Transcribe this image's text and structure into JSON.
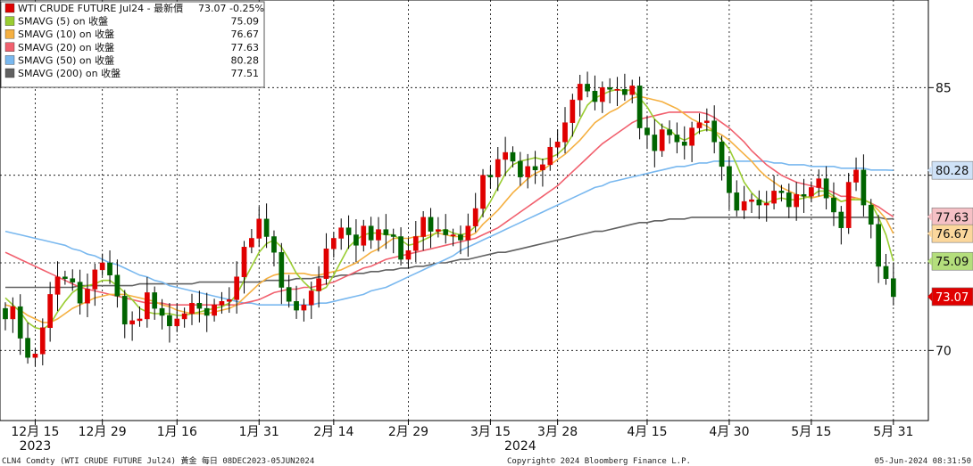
{
  "chart_data": {
    "type": "candlestick",
    "grid": true,
    "legend_position": "top-left",
    "yaxis": {
      "range": [
        66,
        90
      ],
      "ticks": [
        {
          "value": 85,
          "label": "85"
        },
        {
          "value": 80,
          "label": "80"
        },
        {
          "value": 75,
          "label": "75"
        },
        {
          "value": 70,
          "label": "70"
        }
      ]
    },
    "xaxis": {
      "ticks": [
        {
          "index": 4,
          "label": "12月 15"
        },
        {
          "index": 13,
          "label": "12月 29"
        },
        {
          "index": 23,
          "label": "1月 16"
        },
        {
          "index": 34,
          "label": "1月 31"
        },
        {
          "index": 44,
          "label": "2月 14"
        },
        {
          "index": 54,
          "label": "2月 29"
        },
        {
          "index": 65,
          "label": "3月 15"
        },
        {
          "index": 74,
          "label": "3月 28"
        },
        {
          "index": 86,
          "label": "4月 15"
        },
        {
          "index": 97,
          "label": "4月 30"
        },
        {
          "index": 108,
          "label": "5月 15"
        },
        {
          "index": 119,
          "label": "5月 31"
        }
      ],
      "years": [
        {
          "index": 4,
          "label": "2023"
        },
        {
          "index": 69,
          "label": "2024"
        }
      ]
    },
    "legend": [
      {
        "name": "WTI CRUDE FUTURE Jul24 - 最新價",
        "value": "73.07  -0.25%",
        "color": "#e00000"
      },
      {
        "name": "SMAVG (5)  on 收盤",
        "value": "75.09",
        "color": "#9acd32"
      },
      {
        "name": "SMAVG (10)  on 收盤",
        "value": "76.67",
        "color": "#f5b041"
      },
      {
        "name": "SMAVG (20)  on 收盤",
        "value": "77.63",
        "color": "#f1606e"
      },
      {
        "name": "SMAVG (50)  on 收盤",
        "value": "80.28",
        "color": "#79b8ef"
      },
      {
        "name": "SMAVG (200)  on 收盤",
        "value": "77.51",
        "color": "#606060"
      }
    ],
    "badges": [
      {
        "value": 80.28,
        "label": "80.28",
        "bg": "#cfe2f7",
        "fg": "#111111"
      },
      {
        "value": 77.63,
        "label": "77.63",
        "bg": "#f5c0c5",
        "fg": "#111111"
      },
      {
        "value": 76.67,
        "label": "76.67",
        "bg": "#fbd79c",
        "fg": "#111111"
      },
      {
        "value": 75.09,
        "label": "75.09",
        "bg": "#b4de7c",
        "fg": "#111111"
      },
      {
        "value": 73.07,
        "label": "73.07",
        "bg": "#e00000",
        "fg": "#ffffff"
      }
    ],
    "candles_close": [
      71.8,
      72.5,
      70.7,
      69.6,
      69.8,
      71.3,
      73.2,
      74.2,
      74.1,
      73.9,
      72.7,
      73.5,
      74.6,
      75.0,
      74.3,
      73.1,
      71.5,
      71.7,
      71.8,
      73.3,
      72.4,
      72.0,
      71.4,
      71.8,
      72.1,
      72.7,
      72.4,
      72.0,
      72.6,
      72.8,
      72.9,
      74.2,
      75.9,
      76.4,
      77.5,
      76.5,
      75.6,
      73.6,
      72.8,
      72.3,
      72.6,
      73.4,
      74.1,
      75.8,
      76.4,
      77.0,
      76.6,
      76.0,
      77.1,
      76.3,
      76.9,
      76.6,
      76.5,
      75.2,
      75.7,
      76.5,
      77.6,
      76.8,
      76.9,
      76.6,
      76.6,
      76.3,
      77.1,
      78.1,
      80.0,
      79.9,
      80.9,
      81.3,
      80.8,
      79.9,
      80.5,
      80.3,
      80.6,
      81.6,
      81.9,
      83.0,
      84.3,
      85.2,
      84.8,
      84.2,
      85.0,
      84.9,
      84.9,
      84.6,
      85.1,
      82.7,
      82.3,
      81.4,
      82.6,
      82.3,
      81.9,
      81.7,
      82.7,
      83.0,
      83.1,
      81.9,
      80.5,
      79.0,
      78.0,
      78.5,
      78.6,
      78.3,
      78.4,
      79.1,
      79.0,
      78.2,
      78.9,
      78.8,
      79.3,
      79.8,
      78.7,
      77.9,
      77.0,
      79.6,
      80.3,
      78.3,
      77.2,
      74.8,
      74.1,
      73.07
    ],
    "candles_open": [
      72.4,
      71.8,
      72.5,
      70.7,
      69.6,
      69.8,
      71.3,
      73.2,
      74.2,
      74.1,
      73.9,
      72.7,
      73.5,
      74.6,
      75.0,
      74.3,
      73.1,
      71.5,
      71.7,
      71.8,
      73.3,
      72.4,
      72.0,
      71.4,
      71.8,
      72.1,
      72.7,
      72.4,
      72.0,
      72.6,
      72.8,
      72.9,
      74.2,
      75.9,
      76.4,
      77.5,
      76.5,
      75.6,
      73.6,
      72.8,
      72.3,
      72.6,
      73.4,
      74.1,
      75.8,
      76.4,
      77.0,
      76.6,
      76.0,
      77.1,
      76.3,
      76.9,
      76.6,
      76.5,
      75.2,
      75.7,
      76.5,
      77.6,
      76.8,
      76.9,
      76.6,
      76.6,
      76.3,
      77.1,
      78.1,
      80.0,
      79.9,
      80.9,
      81.3,
      80.8,
      79.9,
      80.5,
      80.3,
      80.6,
      81.6,
      81.9,
      83.0,
      84.3,
      85.2,
      84.8,
      84.2,
      85.0,
      84.9,
      84.9,
      84.6,
      85.1,
      82.7,
      82.3,
      81.4,
      82.6,
      82.3,
      81.9,
      81.7,
      82.7,
      83.0,
      83.1,
      81.9,
      80.5,
      79.0,
      78.0,
      78.5,
      78.6,
      78.3,
      78.4,
      79.1,
      79.0,
      78.2,
      78.9,
      78.8,
      79.3,
      79.8,
      78.7,
      77.9,
      77.0,
      79.6,
      80.3,
      78.3,
      77.2,
      74.8,
      74.1
    ],
    "sma5": [
      73.0,
      72.6,
      72.2,
      71.6,
      71.3,
      71.2,
      71.5,
      72.2,
      72.8,
      73.3,
      73.6,
      73.7,
      73.8,
      74.0,
      74.0,
      73.7,
      73.3,
      72.9,
      72.4,
      72.2,
      72.1,
      72.1,
      72.1,
      72.0,
      72.0,
      72.1,
      72.2,
      72.3,
      72.4,
      72.5,
      72.7,
      73.2,
      74.0,
      74.8,
      75.6,
      76.1,
      76.3,
      75.9,
      75.2,
      74.4,
      73.9,
      73.5,
      73.4,
      73.6,
      74.3,
      75.1,
      75.9,
      76.3,
      76.6,
      76.7,
      76.7,
      76.6,
      76.6,
      76.3,
      76.0,
      76.1,
      76.3,
      76.5,
      76.8,
      76.9,
      76.7,
      76.6,
      76.7,
      77.1,
      77.8,
      78.5,
      79.3,
      80.1,
      80.6,
      80.8,
      80.9,
      81.0,
      80.9,
      81.0,
      81.2,
      81.6,
      82.3,
      83.2,
      84.0,
      84.4,
      84.6,
      84.8,
      84.9,
      84.8,
      84.9,
      84.4,
      83.9,
      83.2,
      82.8,
      82.6,
      82.2,
      82.0,
      82.2,
      82.5,
      82.6,
      82.5,
      82.0,
      81.5,
      80.6,
      79.6,
      79.0,
      78.6,
      78.4,
      78.6,
      78.7,
      78.6,
      78.6,
      78.7,
      78.8,
      79.1,
      79.1,
      78.8,
      78.5,
      78.6,
      78.6,
      78.6,
      78.4,
      77.6,
      76.6,
      75.09
    ],
    "sma10": [
      72.6,
      72.5,
      72.3,
      72.0,
      71.8,
      71.6,
      71.6,
      71.8,
      72.1,
      72.4,
      72.6,
      72.8,
      73.0,
      73.1,
      73.2,
      73.2,
      73.2,
      73.1,
      73.0,
      72.9,
      72.8,
      72.6,
      72.5,
      72.3,
      72.2,
      72.1,
      72.1,
      72.1,
      72.2,
      72.3,
      72.4,
      72.6,
      73.0,
      73.4,
      73.8,
      74.1,
      74.3,
      74.4,
      74.4,
      74.4,
      74.4,
      74.3,
      74.3,
      74.4,
      74.5,
      74.6,
      74.8,
      75.0,
      75.3,
      75.6,
      75.8,
      76.1,
      76.4,
      76.4,
      76.4,
      76.5,
      76.5,
      76.6,
      76.7,
      76.6,
      76.5,
      76.5,
      76.5,
      76.7,
      77.2,
      77.6,
      78.0,
      78.5,
      79.0,
      79.4,
      79.8,
      80.1,
      80.3,
      80.6,
      80.9,
      81.2,
      81.6,
      82.0,
      82.5,
      83.0,
      83.3,
      83.6,
      83.8,
      84.1,
      84.4,
      84.5,
      84.4,
      84.3,
      84.2,
      84.0,
      83.8,
      83.5,
      83.2,
      83.0,
      82.8,
      82.5,
      82.3,
      82.0,
      81.6,
      81.2,
      80.8,
      80.3,
      79.9,
      79.6,
      79.3,
      79.1,
      78.9,
      78.8,
      78.7,
      78.8,
      78.9,
      78.7,
      78.5,
      78.6,
      78.7,
      78.6,
      78.4,
      78.0,
      77.5,
      76.67
    ],
    "sma20": [
      75.6,
      75.4,
      75.2,
      75.0,
      74.8,
      74.6,
      74.4,
      74.2,
      74.0,
      73.8,
      73.6,
      73.5,
      73.4,
      73.3,
      73.2,
      73.1,
      73.0,
      72.9,
      72.8,
      72.7,
      72.7,
      72.7,
      72.6,
      72.6,
      72.6,
      72.6,
      72.6,
      72.6,
      72.6,
      72.6,
      72.6,
      72.6,
      72.7,
      72.8,
      72.9,
      73.1,
      73.3,
      73.4,
      73.5,
      73.5,
      73.6,
      73.6,
      73.7,
      73.8,
      73.9,
      74.1,
      74.3,
      74.5,
      74.7,
      74.8,
      75.0,
      75.2,
      75.3,
      75.4,
      75.5,
      75.6,
      75.7,
      75.8,
      75.9,
      76.0,
      76.1,
      76.2,
      76.3,
      76.4,
      76.6,
      76.8,
      77.0,
      77.3,
      77.6,
      77.9,
      78.2,
      78.5,
      78.8,
      79.1,
      79.4,
      79.8,
      80.2,
      80.6,
      81.0,
      81.4,
      81.8,
      82.1,
      82.4,
      82.7,
      83.0,
      83.2,
      83.3,
      83.4,
      83.5,
      83.6,
      83.6,
      83.6,
      83.6,
      83.6,
      83.5,
      83.3,
      83.0,
      82.7,
      82.3,
      81.9,
      81.4,
      81.0,
      80.6,
      80.3,
      80.0,
      79.8,
      79.6,
      79.5,
      79.4,
      79.3,
      79.2,
      79.0,
      78.8,
      78.8,
      78.7,
      78.6,
      78.4,
      78.2,
      77.9,
      77.63
    ],
    "sma50": [
      76.8,
      76.7,
      76.6,
      76.5,
      76.4,
      76.3,
      76.2,
      76.1,
      76.0,
      75.8,
      75.7,
      75.5,
      75.4,
      75.2,
      75.0,
      74.9,
      74.7,
      74.5,
      74.3,
      74.2,
      74.0,
      73.9,
      73.7,
      73.6,
      73.5,
      73.4,
      73.3,
      73.2,
      73.1,
      73.0,
      72.9,
      72.8,
      72.7,
      72.7,
      72.6,
      72.6,
      72.6,
      72.6,
      72.6,
      72.6,
      72.6,
      72.6,
      72.7,
      72.7,
      72.8,
      72.9,
      73.0,
      73.1,
      73.2,
      73.4,
      73.5,
      73.6,
      73.8,
      74.0,
      74.2,
      74.4,
      74.6,
      74.8,
      75.0,
      75.2,
      75.4,
      75.7,
      75.9,
      76.1,
      76.3,
      76.5,
      76.7,
      76.9,
      77.1,
      77.3,
      77.5,
      77.7,
      77.9,
      78.1,
      78.3,
      78.5,
      78.7,
      78.9,
      79.1,
      79.3,
      79.4,
      79.6,
      79.7,
      79.8,
      79.9,
      80.0,
      80.1,
      80.2,
      80.3,
      80.4,
      80.5,
      80.5,
      80.6,
      80.7,
      80.7,
      80.8,
      80.8,
      80.8,
      80.8,
      80.8,
      80.8,
      80.8,
      80.8,
      80.7,
      80.7,
      80.6,
      80.6,
      80.6,
      80.5,
      80.5,
      80.5,
      80.5,
      80.4,
      80.4,
      80.4,
      80.4,
      80.3,
      80.3,
      80.3,
      80.28
    ],
    "sma200": [
      73.6,
      73.6,
      73.6,
      73.6,
      73.6,
      73.6,
      73.6,
      73.6,
      73.6,
      73.6,
      73.7,
      73.7,
      73.7,
      73.7,
      73.7,
      73.7,
      73.7,
      73.7,
      73.8,
      73.8,
      73.8,
      73.8,
      73.8,
      73.8,
      73.8,
      73.8,
      73.9,
      73.9,
      73.9,
      73.9,
      73.9,
      73.9,
      73.9,
      73.9,
      73.9,
      74.0,
      74.0,
      74.0,
      74.0,
      74.1,
      74.1,
      74.1,
      74.2,
      74.2,
      74.2,
      74.3,
      74.3,
      74.4,
      74.4,
      74.5,
      74.5,
      74.6,
      74.6,
      74.7,
      74.7,
      74.8,
      74.8,
      74.9,
      75.0,
      75.0,
      75.1,
      75.2,
      75.2,
      75.3,
      75.4,
      75.5,
      75.6,
      75.6,
      75.7,
      75.8,
      75.9,
      76.0,
      76.1,
      76.2,
      76.3,
      76.4,
      76.5,
      76.6,
      76.7,
      76.8,
      76.8,
      76.9,
      77.0,
      77.1,
      77.2,
      77.3,
      77.3,
      77.4,
      77.4,
      77.5,
      77.5,
      77.5,
      77.6,
      77.6,
      77.6,
      77.6,
      77.6,
      77.6,
      77.6,
      77.6,
      77.6,
      77.6,
      77.6,
      77.6,
      77.6,
      77.6,
      77.6,
      77.6,
      77.6,
      77.6,
      77.6,
      77.6,
      77.6,
      77.6,
      77.6,
      77.6,
      77.6,
      77.6,
      77.5,
      77.51
    ],
    "footer_left": "CLN4 Comdty (WTI CRUDE FUTURE  Jul24) 黃金  每日 08DEC2023-05JUN2024",
    "footer_center": "Copyright© 2024 Bloomberg Finance L.P.",
    "footer_right": "05-Jun-2024 08:31:50"
  }
}
